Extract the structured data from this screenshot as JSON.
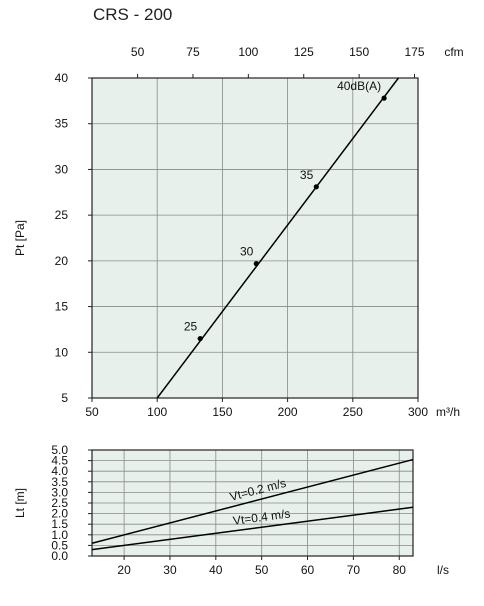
{
  "title": "CRS - 200",
  "chart_data": [
    {
      "type": "line",
      "xlabel": "m³/h",
      "ylabel": "Pt [Pa]",
      "xlim": [
        50,
        300
      ],
      "ylim": [
        5,
        40
      ],
      "xticks": [
        50,
        100,
        150,
        200,
        250,
        300
      ],
      "yticks": [
        5,
        10,
        15,
        20,
        25,
        30,
        35,
        40
      ],
      "secondary_x": {
        "label": "cfm",
        "ticks": [
          50,
          75,
          100,
          125,
          150,
          175
        ]
      },
      "series": [
        {
          "x": [
            100,
            285
          ],
          "y": [
            5,
            40
          ]
        }
      ],
      "points": [
        {
          "x": 133,
          "y": 11.5,
          "label": "25"
        },
        {
          "x": 176,
          "y": 19.7,
          "label": "30"
        },
        {
          "x": 222,
          "y": 28.1,
          "label": "35"
        },
        {
          "x": 274,
          "y": 37.8,
          "label": "40dB(A)"
        }
      ],
      "grid": true,
      "background": "#e8f0ec"
    },
    {
      "type": "line",
      "xlabel": "l/s",
      "ylabel": "Lt [m]",
      "xlim": [
        13,
        83
      ],
      "ylim": [
        0,
        5
      ],
      "xticks": [
        20,
        30,
        40,
        50,
        60,
        70,
        80
      ],
      "yticks": [
        "0.0",
        "0.5",
        "1.0",
        "1.5",
        "2.0",
        "2.5",
        "3.0",
        "3.5",
        "4.0",
        "4.5",
        "5.0"
      ],
      "series": [
        {
          "name": "Vt=0.2 m/s",
          "x": [
            13,
            83
          ],
          "y": [
            0.6,
            4.55
          ]
        },
        {
          "name": "Vt=0.4 m/s",
          "x": [
            13,
            83
          ],
          "y": [
            0.3,
            2.3
          ]
        }
      ],
      "grid": true,
      "background": "#e8f0ec"
    }
  ]
}
